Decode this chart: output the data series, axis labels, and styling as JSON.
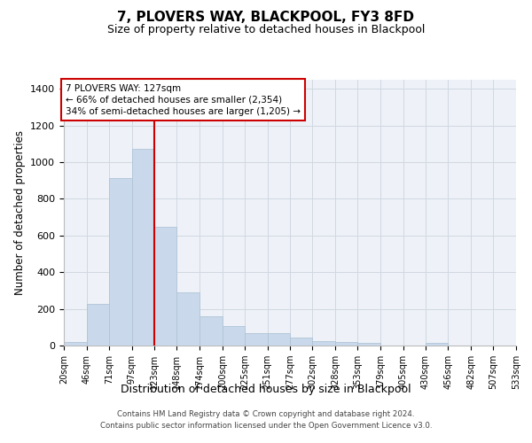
{
  "title": "7, PLOVERS WAY, BLACKPOOL, FY3 8FD",
  "subtitle": "Size of property relative to detached houses in Blackpool",
  "xlabel": "Distribution of detached houses by size in Blackpool",
  "ylabel": "Number of detached properties",
  "bar_color": "#c9d9eb",
  "bar_edge_color": "#afc4d6",
  "grid_color": "#d0d8e0",
  "background_color": "#eef2f8",
  "vline_color": "#cc0000",
  "vline_x": 123,
  "annotation_text": "7 PLOVERS WAY: 127sqm\n← 66% of detached houses are smaller (2,354)\n34% of semi-detached houses are larger (1,205) →",
  "annotation_box_color": "#cc0000",
  "bin_edges": [
    20,
    46,
    71,
    97,
    123,
    148,
    174,
    200,
    225,
    251,
    277,
    302,
    328,
    353,
    379,
    405,
    430,
    456,
    482,
    507,
    533
  ],
  "bar_heights": [
    20,
    228,
    915,
    1075,
    650,
    290,
    158,
    105,
    70,
    70,
    42,
    25,
    20,
    15,
    0,
    0,
    13,
    0,
    0,
    0
  ],
  "ylim": [
    0,
    1450
  ],
  "yticks": [
    0,
    200,
    400,
    600,
    800,
    1000,
    1200,
    1400
  ],
  "footer_text": "Contains HM Land Registry data © Crown copyright and database right 2024.\nContains public sector information licensed under the Open Government Licence v3.0.",
  "tick_labels": [
    "20sqm",
    "46sqm",
    "71sqm",
    "97sqm",
    "123sqm",
    "148sqm",
    "174sqm",
    "200sqm",
    "225sqm",
    "251sqm",
    "277sqm",
    "302sqm",
    "328sqm",
    "353sqm",
    "379sqm",
    "405sqm",
    "430sqm",
    "456sqm",
    "482sqm",
    "507sqm",
    "533sqm"
  ]
}
